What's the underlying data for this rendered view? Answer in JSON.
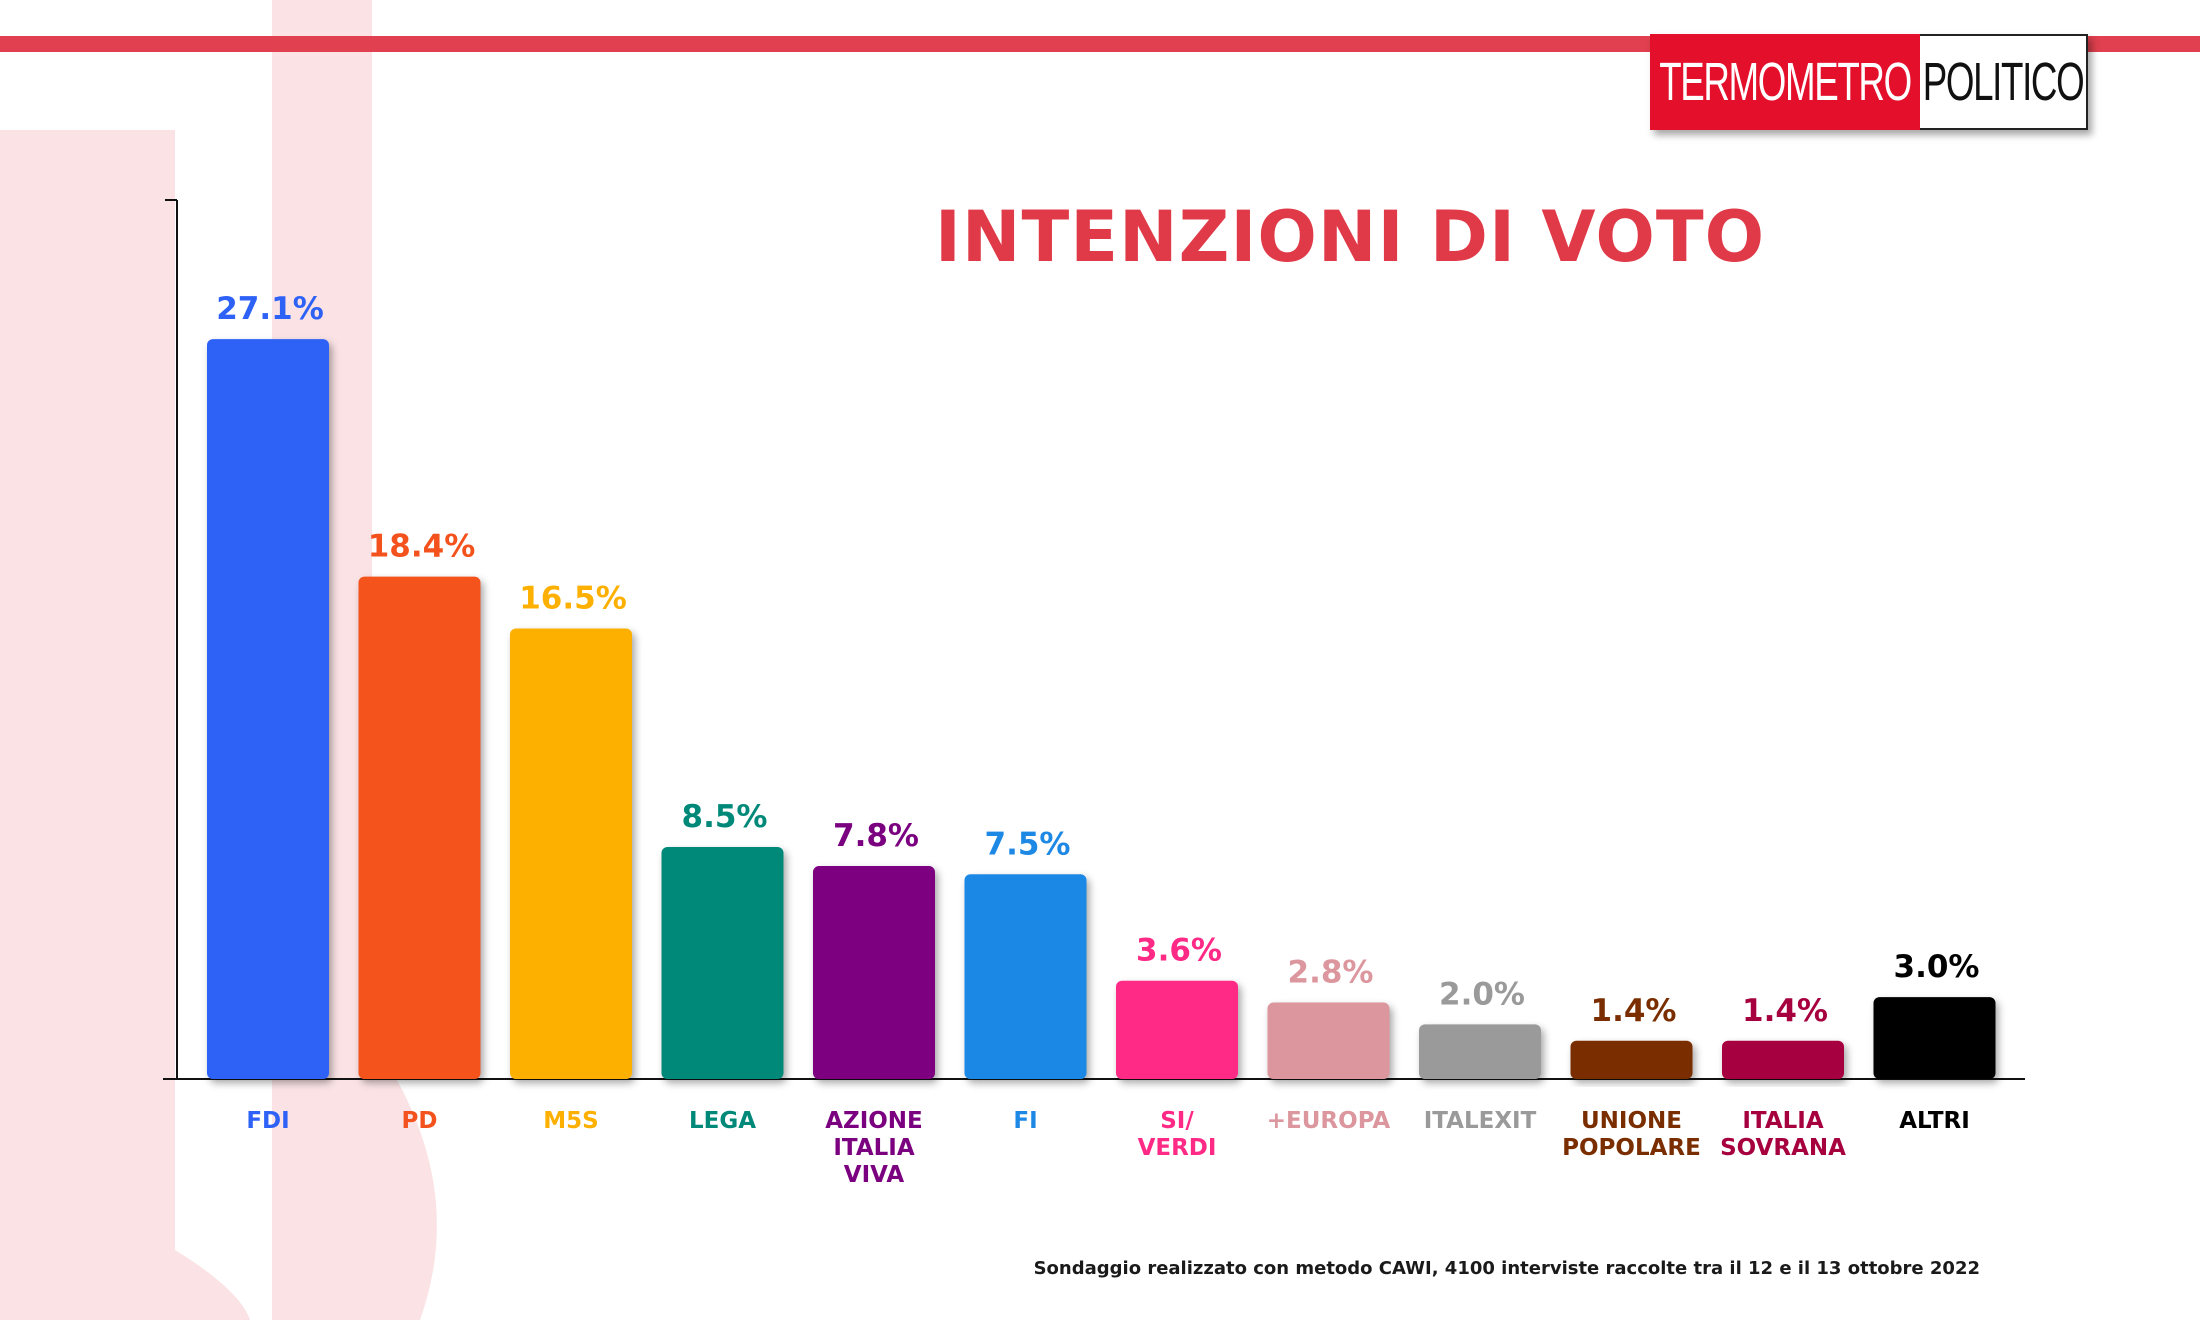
{
  "logo": {
    "part1": "TERMOMETRO",
    "part2": "POLITICO"
  },
  "title": "INTENZIONI DI VOTO",
  "footnote": "Sondaggio realizzato con metodo CAWI, 4100 interviste raccolte tra il 12 e il 13 ottobre 2022",
  "chart_data": {
    "type": "bar",
    "title": "INTENZIONI DI VOTO",
    "xlabel": "",
    "ylabel": "",
    "ylim": [
      0,
      30
    ],
    "grid": false,
    "legend": "none",
    "categories": [
      [
        "FDI"
      ],
      [
        "PD"
      ],
      [
        "M5S"
      ],
      [
        "LEGA"
      ],
      [
        "AZIONE",
        "ITALIA",
        "VIVA"
      ],
      [
        "FI"
      ],
      [
        "SI/",
        "VERDI"
      ],
      [
        "+EUROPA"
      ],
      [
        "ITALEXIT"
      ],
      [
        "UNIONE",
        "POPOLARE"
      ],
      [
        "ITALIA",
        "SOVRANA"
      ],
      [
        "ALTRI"
      ]
    ],
    "values": [
      27.1,
      18.4,
      16.5,
      8.5,
      7.8,
      7.5,
      3.6,
      2.8,
      2.0,
      1.4,
      1.4,
      3.0
    ],
    "value_labels": [
      "27.1%",
      "18.4%",
      "16.5%",
      "8.5%",
      "7.8%",
      "7.5%",
      "3.6%",
      "2.8%",
      "2.0%",
      "1.4%",
      "1.4%",
      "3.0%"
    ],
    "colors": [
      "#2e62f7",
      "#f4521d",
      "#fdb000",
      "#008878",
      "#7b0080",
      "#1e88e5",
      "#ff2a86",
      "#dc969d",
      "#9a9a9a",
      "#7a2e00",
      "#a6003f",
      "#000000"
    ]
  }
}
